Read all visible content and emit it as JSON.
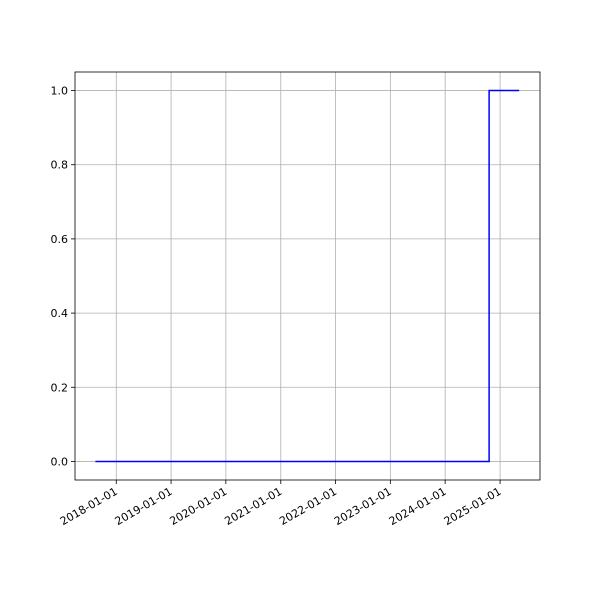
{
  "chart_data": {
    "type": "line",
    "x": [
      "2017-08-15",
      "2024-10-20",
      "2024-10-20",
      "2025-05-08"
    ],
    "series": [
      {
        "color": "#0000ff",
        "values": [
          0,
          0,
          1,
          1
        ]
      }
    ],
    "xlim": [
      "2017-04-01",
      "2025-09-24"
    ],
    "xticks": [
      "2018-01-01",
      "2019-01-01",
      "2020-01-01",
      "2021-01-01",
      "2022-01-01",
      "2023-01-01",
      "2024-01-01",
      "2025-01-01"
    ],
    "ylim": [
      -0.05,
      1.05
    ],
    "yticks": [
      {
        "value": 0,
        "label": "0.0"
      },
      {
        "value": 0.2,
        "label": "0.2"
      },
      {
        "value": 0.4,
        "label": "0.4"
      },
      {
        "value": 0.6,
        "label": "0.6"
      },
      {
        "value": 0.8,
        "label": "0.8"
      },
      {
        "value": 1,
        "label": "1.0"
      }
    ],
    "grid": true
  }
}
